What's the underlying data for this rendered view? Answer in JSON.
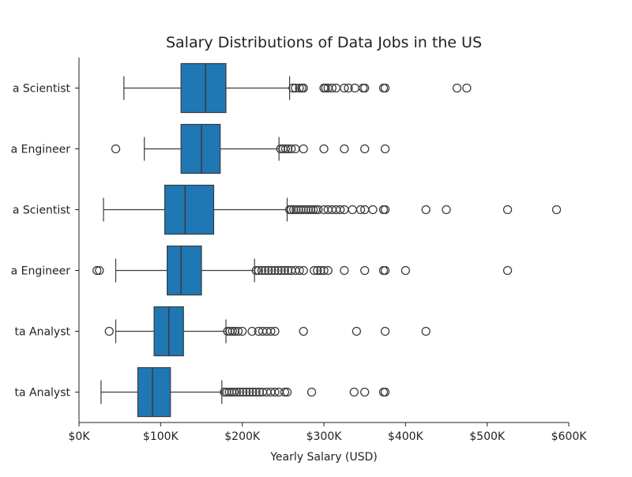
{
  "chart_data": {
    "type": "boxplot",
    "orientation": "horizontal",
    "title": "Salary Distributions of Data Jobs in the US",
    "xlabel": "Yearly Salary (USD)",
    "ylabel": "",
    "xlim": [
      0,
      600000
    ],
    "x_ticks": [
      "$0K",
      "$100K",
      "$200K",
      "$300K",
      "$400K",
      "$500K",
      "$600K"
    ],
    "x_tick_values": [
      0,
      100000,
      200000,
      300000,
      400000,
      500000,
      600000
    ],
    "categories": [
      "a Scientist",
      "a Engineer",
      "a Scientist",
      "a Engineer",
      "ta Analyst",
      "ta Analyst"
    ],
    "box_color": "#1f77b4",
    "grid": false,
    "series": [
      {
        "whisker_low": 55000,
        "q1": 125000,
        "median": 155000,
        "q3": 180000,
        "whisker_high": 258000,
        "outliers": [
          262000,
          265000,
          270000,
          273000,
          275000,
          300000,
          302000,
          305000,
          310000,
          315000,
          325000,
          330000,
          338000,
          348000,
          350000,
          373000,
          375000,
          463000,
          475000
        ]
      },
      {
        "whisker_low": 80000,
        "q1": 125000,
        "median": 150000,
        "q3": 173000,
        "whisker_high": 245000,
        "outliers": [
          45000,
          247000,
          250000,
          253000,
          256000,
          260000,
          265000,
          275000,
          300000,
          325000,
          350000,
          375000
        ]
      },
      {
        "whisker_low": 30000,
        "q1": 105000,
        "median": 130000,
        "q3": 165000,
        "whisker_high": 255000,
        "outliers": [
          258000,
          260000,
          263000,
          266000,
          269000,
          272000,
          275000,
          278000,
          281000,
          284000,
          287000,
          290000,
          293000,
          300000,
          305000,
          310000,
          315000,
          320000,
          325000,
          335000,
          345000,
          350000,
          360000,
          373000,
          375000,
          425000,
          450000,
          525000,
          585000
        ]
      },
      {
        "whisker_low": 45000,
        "q1": 108000,
        "median": 125000,
        "q3": 150000,
        "whisker_high": 215000,
        "outliers": [
          22000,
          25000,
          217000,
          220000,
          224000,
          228000,
          232000,
          236000,
          240000,
          244000,
          248000,
          252000,
          256000,
          260000,
          265000,
          270000,
          275000,
          288000,
          292000,
          296000,
          300000,
          305000,
          325000,
          350000,
          373000,
          375000,
          400000,
          525000
        ]
      },
      {
        "whisker_low": 45000,
        "q1": 92000,
        "median": 110000,
        "q3": 128000,
        "whisker_high": 180000,
        "outliers": [
          37000,
          182000,
          185000,
          188000,
          191000,
          195000,
          200000,
          212000,
          220000,
          225000,
          230000,
          235000,
          240000,
          275000,
          340000,
          375000,
          425000
        ]
      },
      {
        "whisker_low": 27000,
        "q1": 72000,
        "median": 90000,
        "q3": 112000,
        "whisker_high": 175000,
        "outliers": [
          178000,
          181000,
          184000,
          187000,
          190000,
          193000,
          197000,
          201000,
          205000,
          209000,
          213000,
          217000,
          221000,
          225000,
          230000,
          235000,
          240000,
          245000,
          252000,
          255000,
          285000,
          337000,
          350000,
          373000,
          375000
        ]
      }
    ]
  }
}
